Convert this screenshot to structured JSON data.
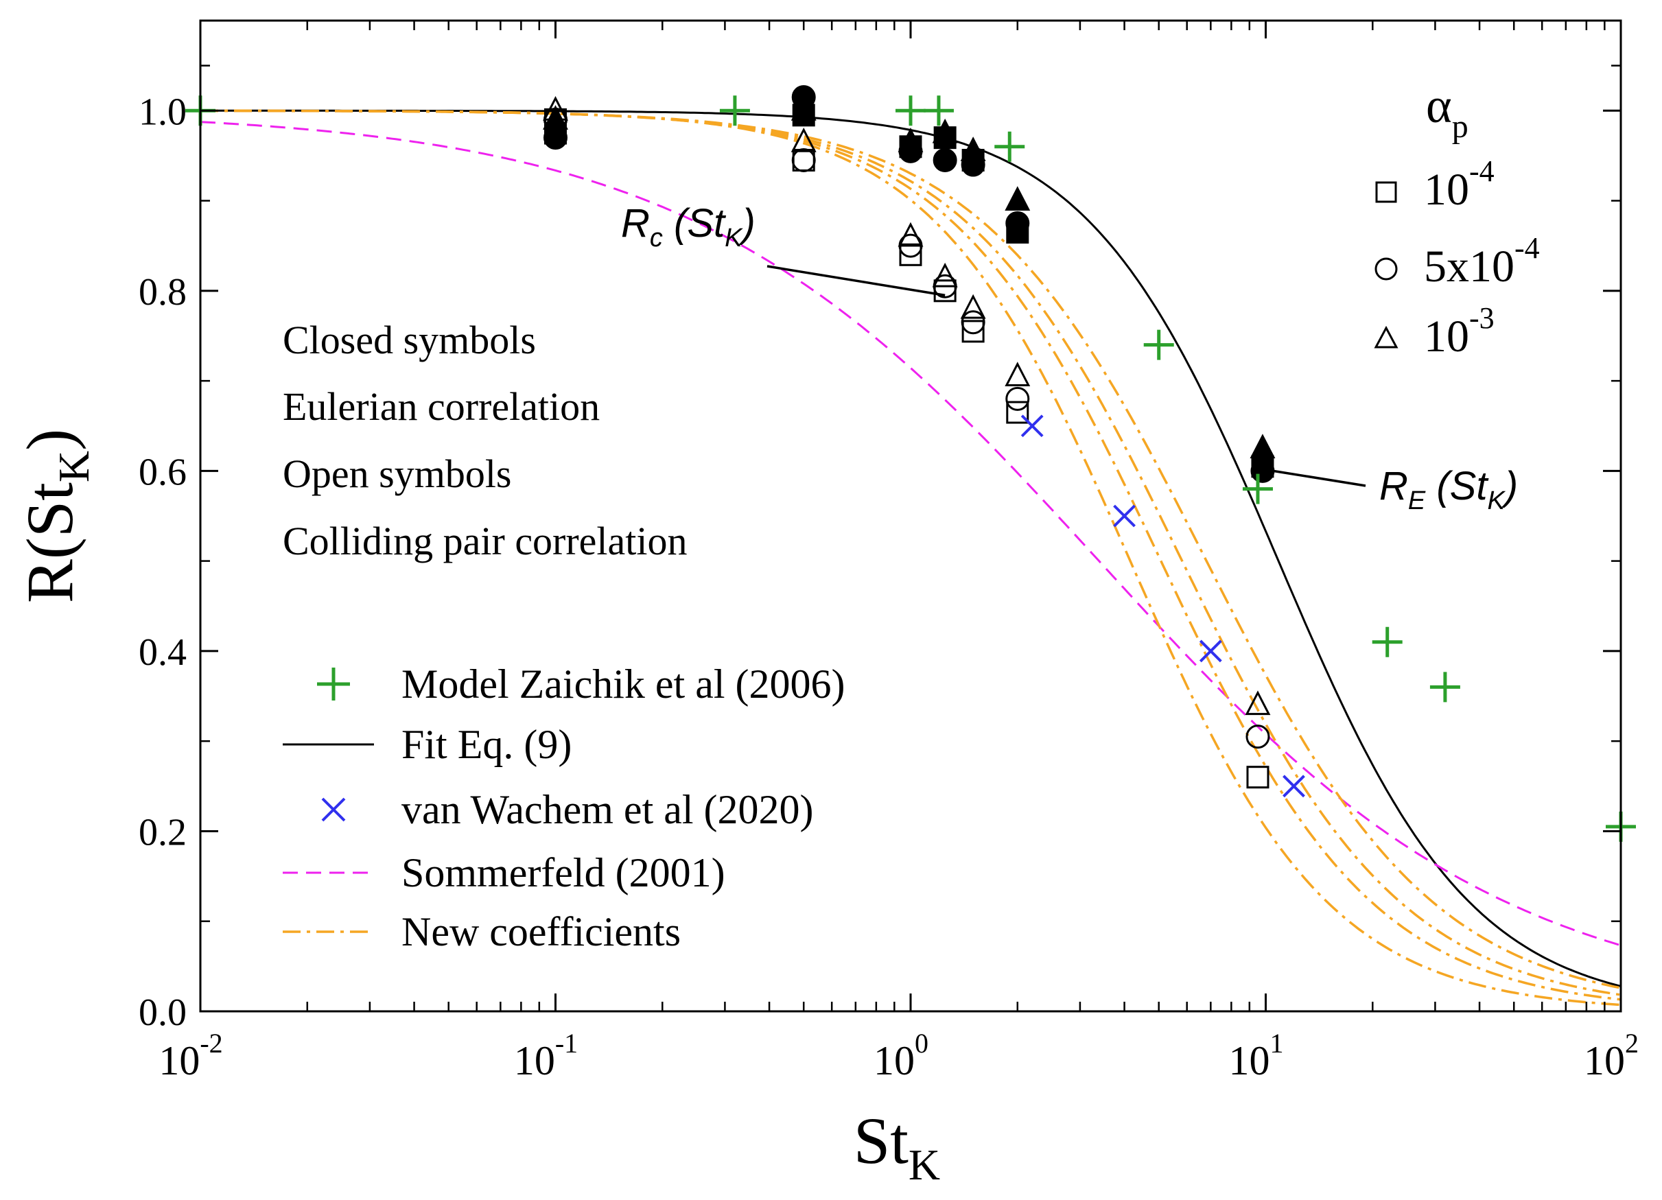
{
  "chart_data": {
    "type": "scatter",
    "xscale": "log",
    "xlim": [
      0.01,
      100
    ],
    "ylim": [
      0.0,
      1.1
    ],
    "xlabel": {
      "main": "St",
      "sub": "K"
    },
    "ylabel": {
      "prefix": "R(St",
      "sub": "K",
      "suffix": ")"
    },
    "x_ticks": [
      {
        "value": 0.01,
        "base": "10",
        "exp": "-2"
      },
      {
        "value": 0.1,
        "base": "10",
        "exp": "-1"
      },
      {
        "value": 1,
        "base": "10",
        "exp": "0"
      },
      {
        "value": 10,
        "base": "10",
        "exp": "1"
      },
      {
        "value": 100,
        "base": "10",
        "exp": "2"
      }
    ],
    "y_ticks": [
      "0.0",
      "0.2",
      "0.4",
      "0.6",
      "0.8",
      "1.0"
    ],
    "y_tick_values": [
      0,
      0.2,
      0.4,
      0.6,
      0.8,
      1.0
    ],
    "notes": [
      "Closed symbols",
      "Eulerian correlation",
      "Open symbols",
      "Colliding pair correlation"
    ],
    "annotations": {
      "rc": {
        "main": "R",
        "sub1": "c",
        "mid": " (St",
        "sub2": "K",
        "end": ")",
        "tx": 1.25,
        "ty": 0.795
      },
      "re": {
        "main": "R",
        "sub1": "E",
        "mid": " (St",
        "sub2": "K",
        "end": ")",
        "tx": 10.5,
        "ty": 0.6
      }
    },
    "alpha_legend": {
      "title": "α",
      "title_sub": "p",
      "entries": [
        {
          "marker": "square",
          "base": "10",
          "exp": "-4"
        },
        {
          "marker": "circle",
          "base": "5x10",
          "exp": "-4"
        },
        {
          "marker": "triangle",
          "base": "10",
          "exp": "-3"
        }
      ]
    },
    "legend": [
      {
        "label": "Model Zaichik et al (2006)",
        "style": "plus",
        "color": "#2ca02c"
      },
      {
        "label": "Fit Eq. (9)",
        "style": "line",
        "color": "#000000"
      },
      {
        "label": "van Wachem et al (2020)",
        "style": "cross",
        "color": "#3030ee"
      },
      {
        "label": "Sommerfeld (2001)",
        "style": "dashed",
        "color": "#ee22ee"
      },
      {
        "label": "New coefficients",
        "style": "dashdot",
        "color": "#f5a623"
      }
    ],
    "series": {
      "zaichik": {
        "name": "Model Zaichik et al (2006)",
        "color": "#2ca02c",
        "x": [
          0.01,
          0.32,
          1.0,
          1.2,
          1.9,
          5.0,
          9.5,
          22,
          32,
          100
        ],
        "y": [
          1.0,
          1.0,
          1.0,
          1.0,
          0.96,
          0.74,
          0.58,
          0.41,
          0.36,
          0.205
        ]
      },
      "fit": {
        "name": "Fit Eq. (9)",
        "color": "#000000",
        "k": 0.022,
        "n": 1.6
      },
      "wachem": {
        "name": "van Wachem et al (2020)",
        "color": "#3030ee",
        "x": [
          2.2,
          4.0,
          7.0,
          12.0
        ],
        "y": [
          0.65,
          0.55,
          0.4,
          0.25
        ]
      },
      "sommerfeld": {
        "name": "Sommerfeld (2001)",
        "color": "#ee22ee",
        "a": 0.4,
        "p": 0.75
      },
      "new_coeff": {
        "name": "New coefficients",
        "color": "#f5a623",
        "curves": [
          {
            "k": 0.11,
            "n": 1.55
          },
          {
            "k": 0.095,
            "n": 1.45
          },
          {
            "k": 0.085,
            "n": 1.4
          },
          {
            "k": 0.075,
            "n": 1.35
          }
        ]
      },
      "closed": {
        "name": "Eulerian correlation",
        "color": "#000000",
        "square": {
          "x": [
            0.1,
            0.5,
            1.0,
            1.25,
            1.5,
            2.0,
            9.8
          ],
          "y": [
            0.975,
            0.995,
            0.96,
            0.97,
            0.945,
            0.865,
            0.605
          ]
        },
        "circle": {
          "x": [
            0.1,
            0.5,
            1.0,
            1.25,
            1.5,
            2.0,
            9.8
          ],
          "y": [
            0.97,
            1.015,
            0.955,
            0.945,
            0.94,
            0.875,
            0.6
          ]
        },
        "triangle": {
          "x": [
            0.1,
            0.5,
            1.0,
            1.25,
            1.5,
            2.0,
            9.8
          ],
          "y": [
            0.99,
            1.0,
            0.965,
            0.975,
            0.955,
            0.9,
            0.625
          ]
        }
      },
      "open": {
        "name": "Colliding pair correlation",
        "color": "#000000",
        "square": {
          "x": [
            0.1,
            0.5,
            1.0,
            1.25,
            1.5,
            2.0,
            9.5
          ],
          "y": [
            0.99,
            0.945,
            0.84,
            0.8,
            0.755,
            0.665,
            0.26
          ]
        },
        "circle": {
          "x": [
            0.1,
            0.5,
            1.0,
            1.25,
            1.5,
            2.0,
            9.5
          ],
          "y": [
            0.99,
            0.945,
            0.85,
            0.805,
            0.765,
            0.68,
            0.305
          ]
        },
        "triangle": {
          "x": [
            0.1,
            0.5,
            1.0,
            1.25,
            1.5,
            2.0,
            9.5
          ],
          "y": [
            1.0,
            0.965,
            0.86,
            0.815,
            0.78,
            0.705,
            0.34
          ]
        }
      }
    }
  }
}
